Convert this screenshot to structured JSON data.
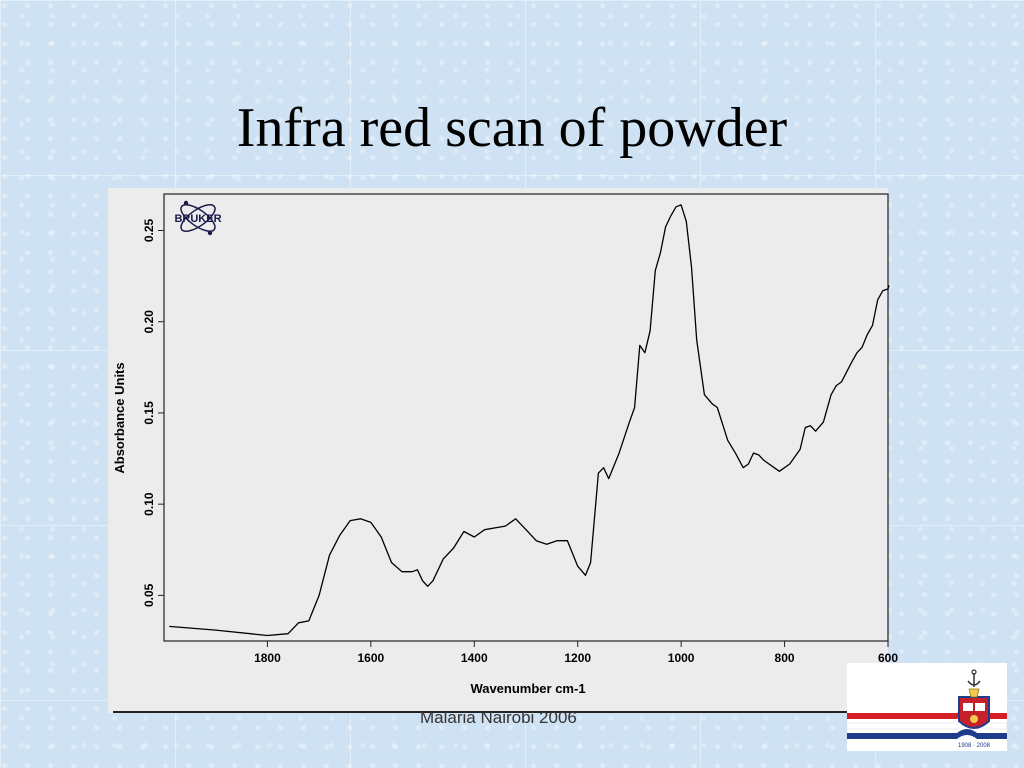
{
  "slide": {
    "title": "Infra red scan of powder",
    "footer": "Malaria Nairobi 2006"
  },
  "logos": {
    "bruker_text": "BRUKER",
    "crest_text": "1908 · 2008"
  },
  "colors": {
    "background": "#cfe2f3",
    "chart_bg": "#ececec",
    "line": "#000000",
    "stripe_red": "#d41f26",
    "stripe_blue": "#1d3c8c"
  },
  "chart_data": {
    "type": "line",
    "title": "",
    "xlabel": "Wavenumber cm-1",
    "ylabel": "Absorbance Units",
    "xlim": [
      2000,
      600
    ],
    "x_reversed": true,
    "ylim": [
      0.025,
      0.27
    ],
    "xticks": [
      1800,
      1600,
      1400,
      1200,
      1000,
      800,
      600
    ],
    "xtick_labels": [
      "1800",
      "1600",
      "1400",
      "1200",
      "1000",
      "800",
      "600"
    ],
    "yticks": [
      0.05,
      0.1,
      0.15,
      0.2,
      0.25
    ],
    "ytick_labels": [
      "0.05",
      "0.10",
      "0.15",
      "0.20",
      "0.25"
    ],
    "grid": false,
    "series": [
      {
        "points": [
          [
            1990,
            0.033
          ],
          [
            1900,
            0.031
          ],
          [
            1800,
            0.028
          ],
          [
            1760,
            0.029
          ],
          [
            1740,
            0.035
          ],
          [
            1720,
            0.036
          ],
          [
            1700,
            0.05
          ],
          [
            1680,
            0.072
          ],
          [
            1660,
            0.083
          ],
          [
            1640,
            0.091
          ],
          [
            1620,
            0.092
          ],
          [
            1600,
            0.09
          ],
          [
            1580,
            0.082
          ],
          [
            1560,
            0.068
          ],
          [
            1540,
            0.063
          ],
          [
            1520,
            0.063
          ],
          [
            1510,
            0.064
          ],
          [
            1500,
            0.058
          ],
          [
            1490,
            0.055
          ],
          [
            1480,
            0.058
          ],
          [
            1460,
            0.07
          ],
          [
            1440,
            0.076
          ],
          [
            1420,
            0.085
          ],
          [
            1400,
            0.082
          ],
          [
            1380,
            0.086
          ],
          [
            1360,
            0.087
          ],
          [
            1340,
            0.088
          ],
          [
            1320,
            0.092
          ],
          [
            1300,
            0.086
          ],
          [
            1280,
            0.08
          ],
          [
            1260,
            0.078
          ],
          [
            1240,
            0.08
          ],
          [
            1220,
            0.08
          ],
          [
            1200,
            0.066
          ],
          [
            1185,
            0.061
          ],
          [
            1175,
            0.068
          ],
          [
            1160,
            0.117
          ],
          [
            1150,
            0.12
          ],
          [
            1140,
            0.114
          ],
          [
            1120,
            0.128
          ],
          [
            1100,
            0.145
          ],
          [
            1090,
            0.153
          ],
          [
            1080,
            0.187
          ],
          [
            1070,
            0.183
          ],
          [
            1060,
            0.195
          ],
          [
            1050,
            0.228
          ],
          [
            1040,
            0.238
          ],
          [
            1030,
            0.252
          ],
          [
            1020,
            0.258
          ],
          [
            1010,
            0.263
          ],
          [
            1000,
            0.264
          ],
          [
            990,
            0.255
          ],
          [
            980,
            0.23
          ],
          [
            970,
            0.19
          ],
          [
            955,
            0.16
          ],
          [
            940,
            0.155
          ],
          [
            930,
            0.153
          ],
          [
            910,
            0.135
          ],
          [
            895,
            0.128
          ],
          [
            880,
            0.12
          ],
          [
            870,
            0.122
          ],
          [
            860,
            0.128
          ],
          [
            850,
            0.127
          ],
          [
            840,
            0.124
          ],
          [
            820,
            0.12
          ],
          [
            810,
            0.118
          ],
          [
            790,
            0.122
          ],
          [
            770,
            0.13
          ],
          [
            760,
            0.142
          ],
          [
            750,
            0.143
          ],
          [
            740,
            0.14
          ],
          [
            725,
            0.145
          ],
          [
            710,
            0.16
          ],
          [
            700,
            0.165
          ],
          [
            690,
            0.167
          ],
          [
            670,
            0.178
          ],
          [
            660,
            0.183
          ],
          [
            650,
            0.186
          ],
          [
            640,
            0.193
          ],
          [
            630,
            0.198
          ],
          [
            620,
            0.212
          ],
          [
            610,
            0.217
          ],
          [
            600,
            0.218
          ],
          [
            598,
            0.22
          ]
        ]
      }
    ]
  }
}
